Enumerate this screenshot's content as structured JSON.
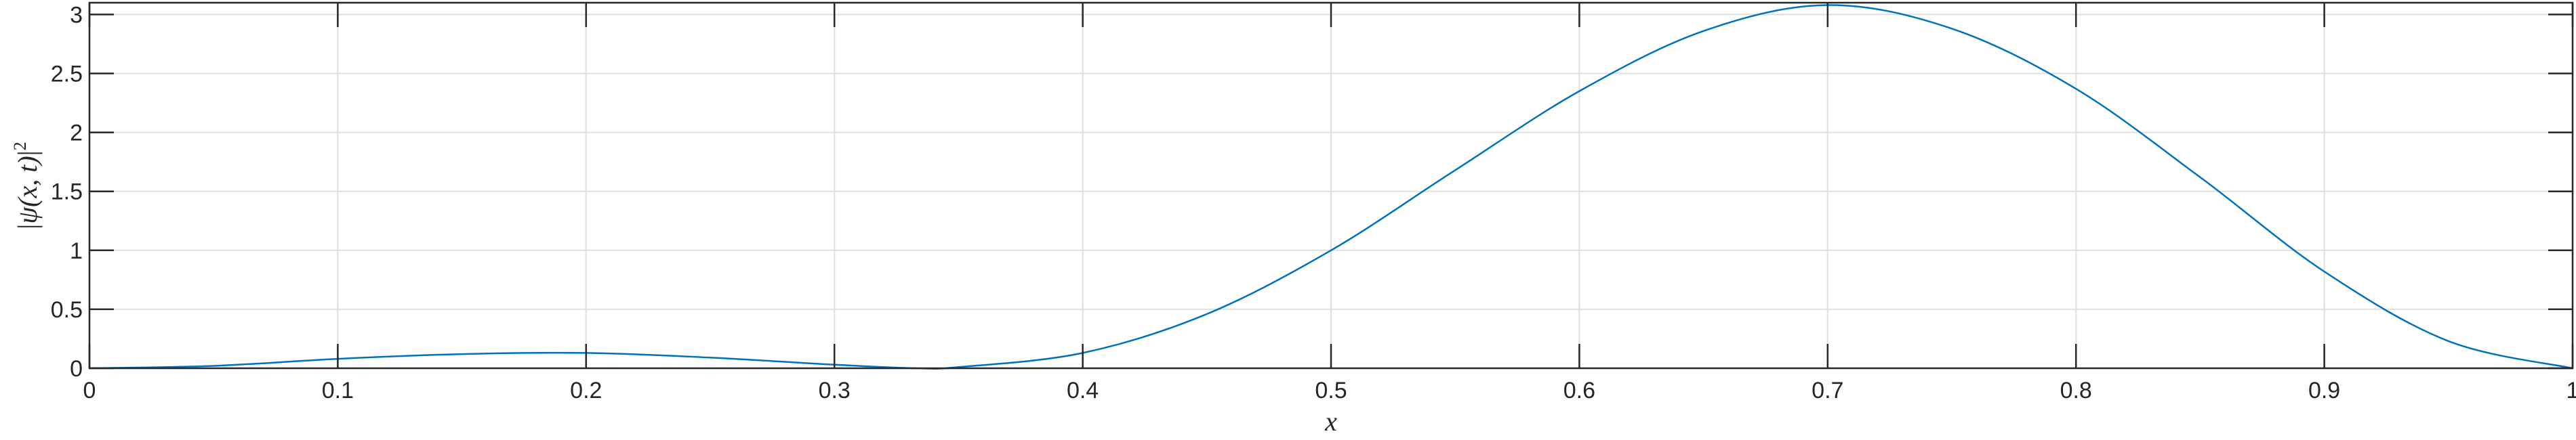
{
  "chart_data": {
    "type": "line",
    "title": "",
    "xlabel": "x",
    "ylabel_parts": {
      "bar_open": "|",
      "psi": "ψ",
      "args": "(x, t)",
      "bar_close": "|",
      "power": "2"
    },
    "xlim": [
      0,
      1
    ],
    "ylim": [
      0,
      3.1
    ],
    "xticks": [
      0,
      0.1,
      0.2,
      0.3,
      0.4,
      0.5,
      0.6,
      0.7,
      0.8,
      0.9,
      1
    ],
    "xtick_labels": [
      "0",
      "0.1",
      "0.2",
      "0.3",
      "0.4",
      "0.5",
      "0.6",
      "0.7",
      "0.8",
      "0.9",
      "1"
    ],
    "yticks": [
      0,
      0.5,
      1,
      1.5,
      2,
      2.5,
      3
    ],
    "ytick_labels": [
      "0",
      "0.5",
      "1",
      "1.5",
      "2",
      "2.5",
      "3"
    ],
    "grid": true,
    "line_color": "#0072BD",
    "series": [
      {
        "x": [
          0,
          0.05,
          0.1,
          0.15,
          0.2,
          0.25,
          0.3,
          0.333,
          0.35,
          0.4,
          0.45,
          0.5,
          0.55,
          0.6,
          0.65,
          0.7,
          0.75,
          0.8,
          0.85,
          0.9,
          0.95,
          1
        ],
        "y": [
          0,
          0.02,
          0.08,
          0.12,
          0.13,
          0.09,
          0.03,
          0,
          0.01,
          0.13,
          0.46,
          1.0,
          1.68,
          2.35,
          2.86,
          3.08,
          2.88,
          2.37,
          1.62,
          0.82,
          0.23,
          0
        ]
      }
    ]
  }
}
